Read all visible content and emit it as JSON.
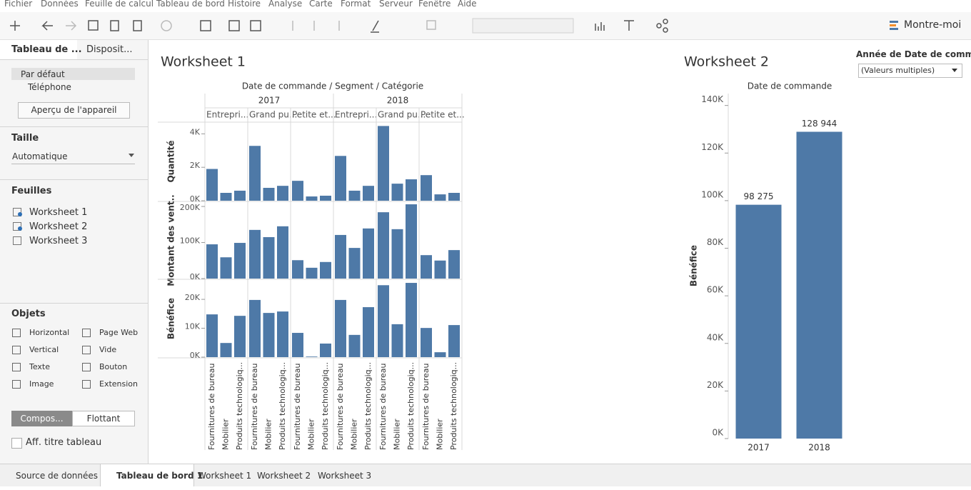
{
  "menu": [
    "Fichier",
    "Données",
    "Feuille de calcul",
    "Tableau de bord",
    "Histoire",
    "Analyse",
    "Carte",
    "Format",
    "Serveur",
    "Fenêtre",
    "Aide"
  ],
  "toolbar": {
    "show_me": "Montre-moi"
  },
  "left_panel": {
    "tabs": [
      "Tableau de ...",
      "Disposit..."
    ],
    "devices": [
      "Par défaut",
      "Téléphone"
    ],
    "device_preview": "Aperçu de l'appareil",
    "size": {
      "title": "Taille",
      "value": "Automatique"
    },
    "sheets": {
      "title": "Feuilles",
      "items": [
        "Worksheet 1",
        "Worksheet 2",
        "Worksheet 3"
      ]
    },
    "objects": {
      "title": "Objets",
      "items": [
        "Horizontal",
        "Page Web",
        "Vertical",
        "Vide",
        "Texte",
        "Bouton",
        "Image",
        "Extension"
      ]
    },
    "layout_modes": [
      "Compos...",
      "Flottant"
    ],
    "show_title": "Aff. titre tableau"
  },
  "chart_data": [
    {
      "type": "bar",
      "title": "Worksheet 1",
      "header": "Date de commande / Segment / Catégorie",
      "years": [
        "2017",
        "2018"
      ],
      "segments": [
        "Entrepri...",
        "Grand pu...",
        "Petite et..."
      ],
      "categories": [
        "Fournitures de bureau",
        "Mobilier",
        "Produits technologiq..."
      ],
      "color": "#4e79a7",
      "rows": [
        {
          "label": "Quantité",
          "ylim": [
            0,
            4700
          ],
          "yticks": [
            {
              "value": 0,
              "label": "0K"
            },
            {
              "value": 2000,
              "label": "2K"
            },
            {
              "value": 4000,
              "label": "4K"
            }
          ],
          "values": [
            1900,
            470,
            600,
            3280,
            770,
            890,
            1190,
            255,
            300,
            2680,
            600,
            890,
            4470,
            1020,
            1280,
            1530,
            380,
            470
          ]
        },
        {
          "label": "Montant des vent..",
          "ylim": [
            0,
            212000
          ],
          "yticks": [
            {
              "value": 0,
              "label": "0K"
            },
            {
              "value": 100000,
              "label": "100K"
            },
            {
              "value": 200000,
              "label": "200K"
            }
          ],
          "values": [
            95000,
            59000,
            99000,
            135000,
            115000,
            145000,
            51000,
            30000,
            46000,
            121000,
            85000,
            139000,
            184000,
            137000,
            206000,
            65000,
            50000,
            79000
          ]
        },
        {
          "label": "Bénéfice",
          "ylim": [
            0,
            26700
          ],
          "yticks": [
            {
              "value": 0,
              "label": "0K"
            },
            {
              "value": 10000,
              "label": "10K"
            },
            {
              "value": 20000,
              "label": "20K"
            }
          ],
          "values": [
            14800,
            4900,
            14300,
            19800,
            15300,
            15800,
            8400,
            200,
            4700,
            19800,
            7700,
            17300,
            24900,
            11400,
            25700,
            10100,
            1700,
            11100
          ]
        }
      ]
    },
    {
      "type": "bar",
      "title": "Worksheet 2",
      "header": "Date de commande",
      "y_label": "Bénéfice",
      "categories": [
        "2017",
        "2018"
      ],
      "values": [
        98275,
        128944
      ],
      "value_labels": [
        "98 275",
        "128 944"
      ],
      "color": "#4e79a7",
      "ylim": [
        0,
        145000
      ],
      "yticks": [
        {
          "value": 0,
          "label": "0K"
        },
        {
          "value": 20000,
          "label": "20K"
        },
        {
          "value": 40000,
          "label": "40K"
        },
        {
          "value": 60000,
          "label": "60K"
        },
        {
          "value": 80000,
          "label": "80K"
        },
        {
          "value": 100000,
          "label": "100K"
        },
        {
          "value": 120000,
          "label": "120K"
        },
        {
          "value": 140000,
          "label": "140K"
        }
      ]
    }
  ],
  "filter": {
    "title": "Année de Date de comma..",
    "value": "(Valeurs multiples)"
  },
  "tabs": [
    "Source de données",
    "Tableau de bord 1",
    "Worksheet 1",
    "Worksheet 2",
    "Worksheet 3"
  ]
}
